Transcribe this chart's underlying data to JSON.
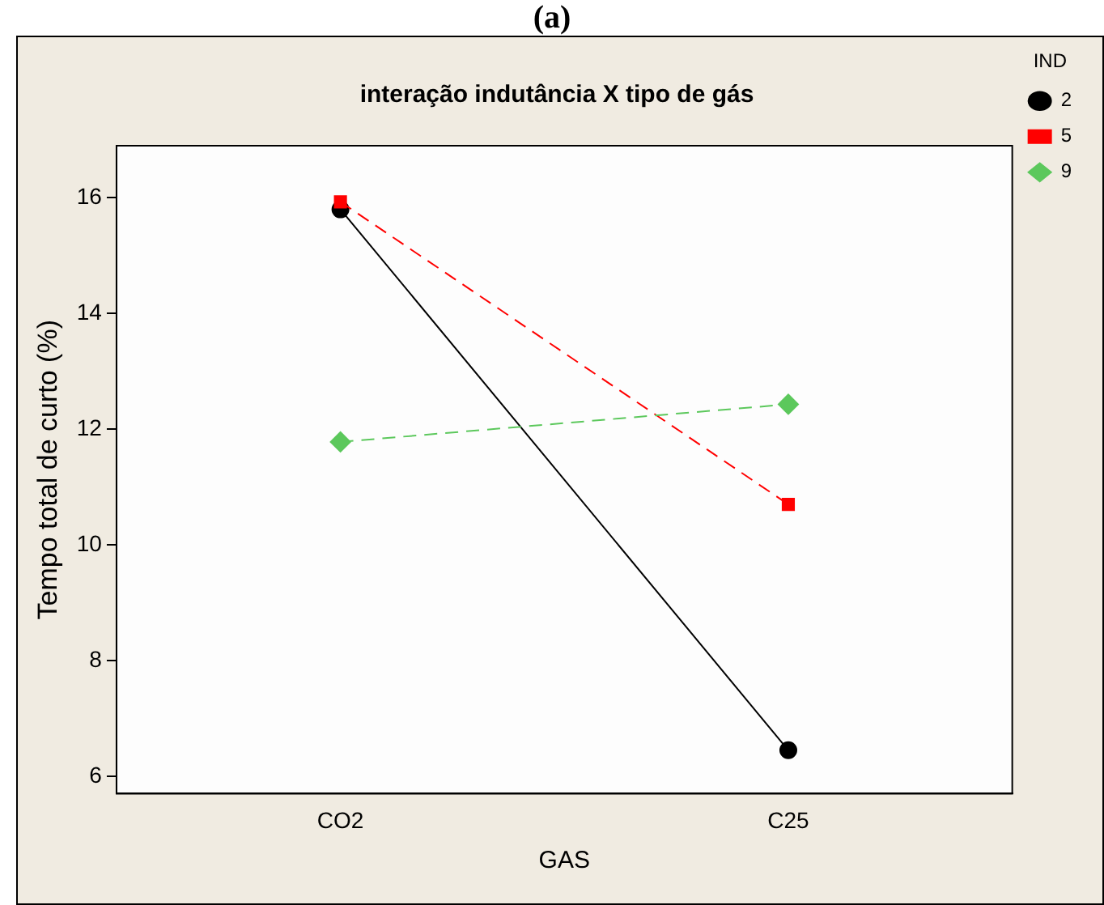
{
  "chart_data": {
    "type": "line",
    "title": "interação indutância X tipo de gás",
    "xlabel": "GAS",
    "ylabel": "Tempo total de curto (%)",
    "legend_title": "IND",
    "annotations": [
      "(a)"
    ],
    "categories": [
      "CO2",
      "C25"
    ],
    "series": [
      {
        "name": "2",
        "color": "#000000",
        "values": [
          15.8,
          6.45
        ],
        "marker": "circle",
        "line_style": "solid"
      },
      {
        "name": "5",
        "color": "#ff0000",
        "values": [
          15.93,
          10.7
        ],
        "marker": "square",
        "line_style": "dashed"
      },
      {
        "name": "9",
        "color": "#5cc85c",
        "values": [
          11.78,
          12.43
        ],
        "marker": "diamond",
        "line_style": "dashed"
      }
    ],
    "ylim": [
      5.7,
      16.9
    ],
    "yticks": [
      6,
      8,
      10,
      12,
      14,
      16
    ],
    "grid": false,
    "legend": "top right"
  }
}
